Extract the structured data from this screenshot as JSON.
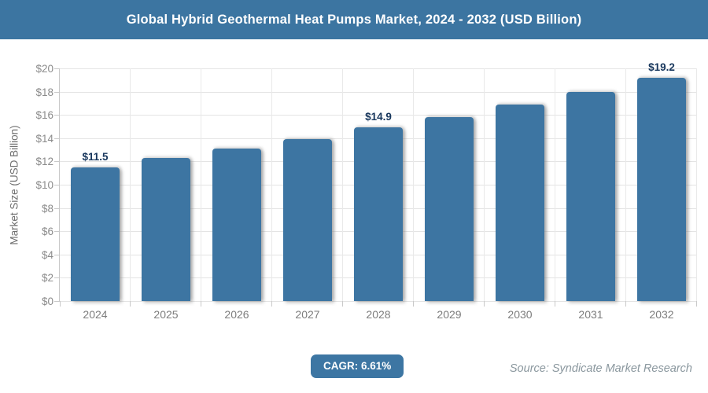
{
  "header": {
    "title": "Global Hybrid Geothermal Heat Pumps Market, 2024 - 2032 (USD Billion)"
  },
  "chart_data": {
    "type": "bar",
    "title": "Global Hybrid Geothermal Heat Pumps Market, 2024 - 2032 (USD Billion)",
    "categories": [
      "2024",
      "2025",
      "2026",
      "2027",
      "2028",
      "2029",
      "2030",
      "2031",
      "2032"
    ],
    "values": [
      11.5,
      12.3,
      13.1,
      13.9,
      14.9,
      15.8,
      16.9,
      18.0,
      19.2
    ],
    "bar_labels": {
      "2024": "$11.5",
      "2028": "$14.9",
      "2032": "$19.2"
    },
    "xlabel": "",
    "ylabel": "Market Size (USD Billion)",
    "ylim": [
      0,
      20
    ],
    "ytick_step": 2,
    "ytick_labels": [
      "$0",
      "$2",
      "$4",
      "$6",
      "$8",
      "$10",
      "$12",
      "$14",
      "$16",
      "$18",
      "$20"
    ],
    "grid": true,
    "legend": "none",
    "bar_color": "#3d75a2",
    "value_label_color": "#17365c"
  },
  "footer": {
    "cagr_label": "CAGR: 6.61%",
    "source": "Source: Syndicate Market Research"
  },
  "colors": {
    "header_background": "#3c75a1",
    "title_text": "#ffffff",
    "gridline": "#e4e4e4",
    "axis_line": "#c9c9c9",
    "tick_label": "#8b8b8b"
  }
}
